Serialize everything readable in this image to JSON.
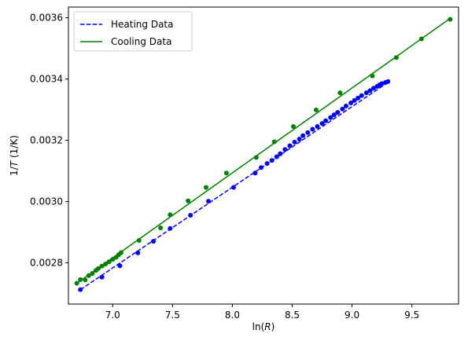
{
  "chart_data": {
    "type": "line",
    "xlabel": "ln(R)",
    "ylabel": "1/T (1/K)",
    "xlim": [
      6.63,
      9.89
    ],
    "ylim": [
      0.002665,
      0.003635
    ],
    "x_ticks": [
      7.0,
      7.5,
      8.0,
      8.5,
      9.0,
      9.5
    ],
    "x_tick_labels": [
      "7.0",
      "7.5",
      "8.0",
      "8.5",
      "9.0",
      "9.5"
    ],
    "y_ticks": [
      0.0028,
      0.003,
      0.0032,
      0.0034,
      0.0036
    ],
    "y_tick_labels": [
      "0.0028",
      "0.0030",
      "0.0032",
      "0.0034",
      "0.0036"
    ],
    "grid": false,
    "legend_position": "top-left",
    "series": [
      {
        "name": "Heating Data",
        "color": "#0000ff",
        "line_style": "dashed",
        "fit_line": {
          "x": [
            6.73,
            9.3
          ],
          "y": [
            0.002712,
            0.003389
          ]
        },
        "points": {
          "x": [
            6.73,
            6.91,
            7.06,
            7.21,
            7.34,
            7.48,
            7.65,
            7.8,
            8.01,
            8.19,
            8.24,
            8.29,
            8.33,
            8.37,
            8.4,
            8.44,
            8.48,
            8.52,
            8.56,
            8.59,
            8.63,
            8.67,
            8.71,
            8.75,
            8.78,
            8.82,
            8.85,
            8.88,
            8.92,
            8.95,
            8.99,
            9.02,
            9.05,
            9.08,
            9.12,
            9.15,
            9.18,
            9.21,
            9.23,
            9.25,
            9.28,
            9.3
          ],
          "y": [
            0.002712,
            0.002753,
            0.00279,
            0.002832,
            0.00287,
            0.002912,
            0.002955,
            0.003001,
            0.003046,
            0.003093,
            0.003111,
            0.003124,
            0.003134,
            0.003146,
            0.003156,
            0.00317,
            0.003182,
            0.003194,
            0.003204,
            0.003215,
            0.003225,
            0.003236,
            0.003245,
            0.003255,
            0.003264,
            0.003274,
            0.003283,
            0.003291,
            0.003302,
            0.003312,
            0.003322,
            0.00333,
            0.003338,
            0.003346,
            0.003355,
            0.003362,
            0.00337,
            0.003376,
            0.003381,
            0.003385,
            0.003389,
            0.003392
          ]
        }
      },
      {
        "name": "Cooling Data",
        "color": "#008000",
        "line_style": "solid",
        "fit_line": {
          "x": [
            6.7,
            9.82
          ],
          "y": [
            0.002733,
            0.003598
          ]
        },
        "points": {
          "x": [
            6.7,
            6.73,
            6.77,
            6.8,
            6.83,
            6.86,
            6.88,
            6.91,
            6.94,
            6.97,
            7.0,
            7.03,
            7.05,
            7.07,
            7.22,
            7.4,
            7.48,
            7.63,
            7.78,
            7.95,
            8.2,
            8.35,
            8.51,
            8.7,
            8.9,
            9.17,
            9.37,
            9.58,
            9.82
          ],
          "y": [
            0.002733,
            0.002745,
            0.002744,
            0.002758,
            0.002765,
            0.002775,
            0.002781,
            0.002789,
            0.002796,
            0.002803,
            0.002811,
            0.002818,
            0.002826,
            0.002833,
            0.002873,
            0.002914,
            0.002957,
            0.003002,
            0.003046,
            0.003093,
            0.003144,
            0.003195,
            0.003245,
            0.003299,
            0.003355,
            0.00341,
            0.00347,
            0.003531,
            0.003595
          ]
        }
      }
    ]
  }
}
